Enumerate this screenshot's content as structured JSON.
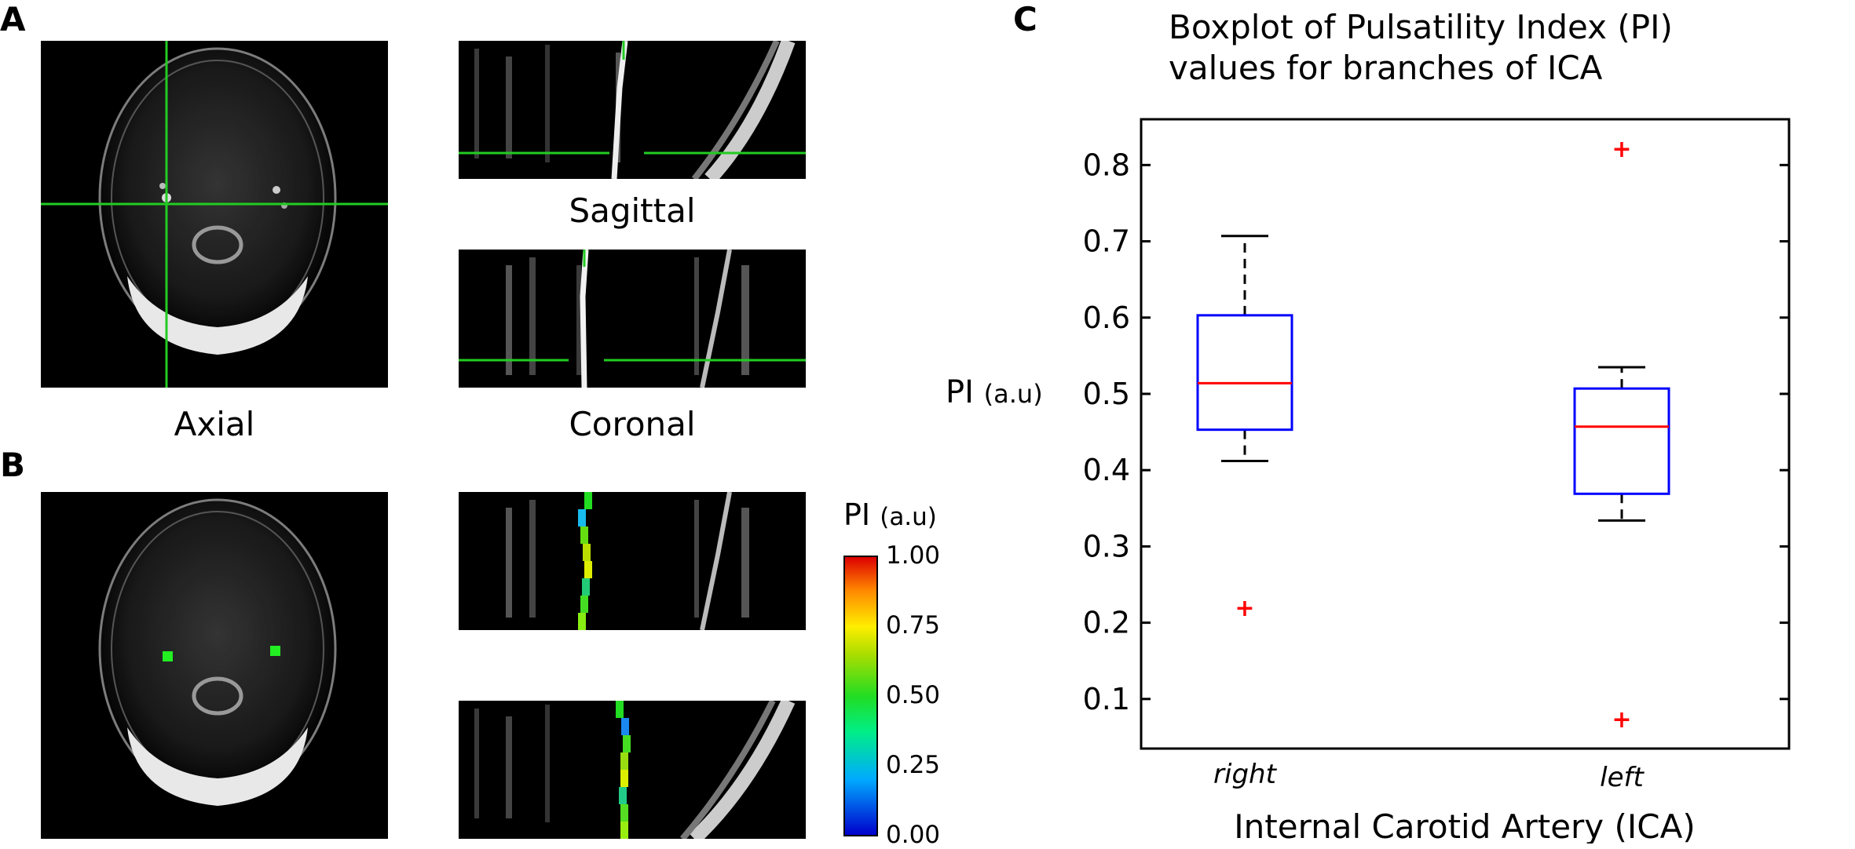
{
  "panels": {
    "a_label": "A",
    "b_label": "B",
    "c_label": "C",
    "axial_caption": "Axial",
    "sagittal_caption": "Sagittal",
    "coronal_caption": "Coronal"
  },
  "colorbar": {
    "title": "PI",
    "unit": "(a.u)",
    "ticks": [
      "1.00",
      "0.75",
      "0.50",
      "0.25",
      "0.00"
    ]
  },
  "chart_data": {
    "type": "boxplot",
    "title_lines": [
      "Boxplot of Pulsatility Index (PI)",
      "values for branches of ICA"
    ],
    "ylabel": "PI",
    "ylabel_unit": "(a.u)",
    "xlabel": "Internal Carotid Artery (ICA)",
    "ylim": [
      0.035,
      0.86
    ],
    "yticks": [
      0.1,
      0.2,
      0.3,
      0.4,
      0.5,
      0.6,
      0.7,
      0.8
    ],
    "ytick_labels": [
      "0.1",
      "0.2",
      "0.3",
      "0.4",
      "0.5",
      "0.6",
      "0.7",
      "0.8"
    ],
    "categories": [
      "right",
      "left"
    ],
    "boxes": [
      {
        "name": "right",
        "whisker_low": 0.412,
        "q1": 0.453,
        "median": 0.514,
        "q3": 0.603,
        "whisker_high": 0.707,
        "outliers": [
          0.22
        ]
      },
      {
        "name": "left",
        "whisker_low": 0.334,
        "q1": 0.369,
        "median": 0.457,
        "q3": 0.507,
        "whisker_high": 0.535,
        "outliers": [
          0.822,
          0.074
        ]
      }
    ],
    "colors": {
      "box": "#0000ff",
      "median": "#ff0000",
      "outlier": "#ff0000",
      "whisker": "#000000"
    }
  }
}
